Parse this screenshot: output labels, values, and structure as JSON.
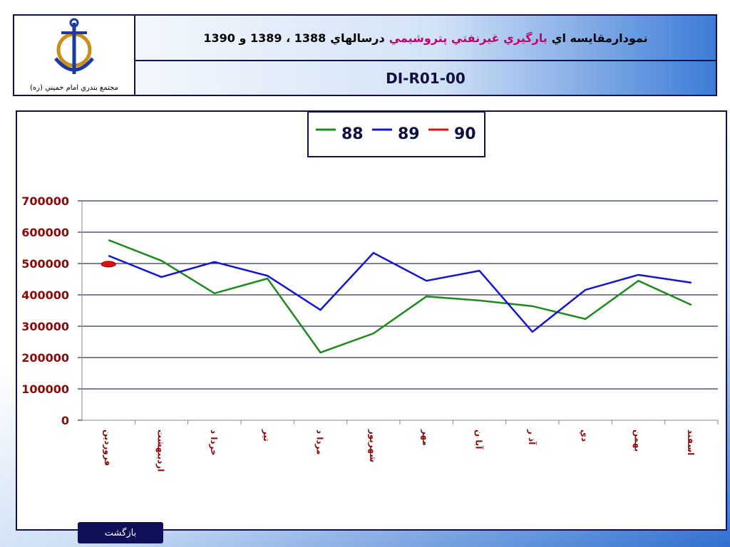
{
  "header": {
    "title_parts": [
      {
        "text": "نمودارمقايسه اي",
        "color": "#000000"
      },
      {
        "text": "بارگيري غيرنفتي پتروشيمي",
        "color": "#c0006a"
      },
      {
        "text": "درسالهاي",
        "color": "#000000"
      },
      {
        "text": "1388 ، 1389 و 1390",
        "color": "#000000"
      }
    ],
    "code": "DI-R01-00",
    "logo_caption": "مجتمع بندري امام خميني (ره)"
  },
  "chart_data": {
    "type": "line",
    "categories": [
      "فروردين",
      "ارديبهشت",
      "خردا د",
      "تير",
      "مردا د",
      "شهريور",
      "مهر",
      "آبا ن",
      "آذ ر",
      "دي",
      "بهمن",
      "اسفند"
    ],
    "series": [
      {
        "name": "88",
        "color": "#1e8a1e",
        "values": [
          575000,
          509000,
          405000,
          452000,
          216000,
          277000,
          395000,
          382000,
          364000,
          323000,
          445000,
          368000
        ]
      },
      {
        "name": "89",
        "color": "#1414d2",
        "values": [
          525000,
          457000,
          505000,
          461000,
          352000,
          534000,
          445000,
          477000,
          282000,
          416000,
          464000,
          439000
        ]
      },
      {
        "name": "90",
        "color": "#e01010",
        "values": [
          498000,
          null,
          null,
          null,
          null,
          null,
          null,
          null,
          null,
          null,
          null,
          null
        ]
      }
    ],
    "ylim": [
      0,
      700000
    ],
    "yticks": [
      0,
      100000,
      200000,
      300000,
      400000,
      500000,
      600000,
      700000
    ],
    "grid": true,
    "legend": "top"
  },
  "back_button": "بازگشت"
}
